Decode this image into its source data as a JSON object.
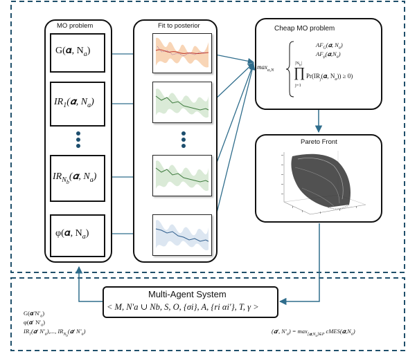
{
  "panels": {
    "mo_problem_title": "MO problem",
    "fit_title": "Fit to posterior",
    "cheap_title": "Cheap MO problem",
    "pareto_title": "Pareto Front",
    "mas_title": "Multi-Agent System"
  },
  "functions": [
    {
      "id": "G",
      "text": "G(𝜶, N",
      "sub": "a",
      "close": ")"
    },
    {
      "id": "IR1",
      "text": "IR",
      "sub": "1",
      "rest": "(𝜶, N",
      "sub2": "a",
      "close": ")"
    },
    {
      "id": "IRNb",
      "text": "IR",
      "sub": "N",
      "subsub": "b",
      "rest": "(𝜶, N",
      "sub2": "a",
      "close": ")"
    },
    {
      "id": "phi",
      "text": "φ(𝜶, N",
      "sub": "a",
      "close": ")"
    }
  ],
  "cheap_problem": {
    "max_label": "max",
    "max_sub": "α,N",
    "af1": "AF",
    "af1_sub": "G",
    "af1_args": "(𝜶, N",
    "af1_args_sub": "a",
    "af2": "AF",
    "af2_sub": "φ",
    "af2_args": "(𝜶,N",
    "af2_args_sub": "a",
    "prod_upper": "|N",
    "prod_upper_sub": "b",
    "prod_upper_close": "|",
    "prod_lower": "j=1",
    "constraint": "Pr(IR",
    "constraint_sub": "j",
    "constraint_rest": "(𝜶, N",
    "constraint_rest_sub": "a",
    "constraint_end": ")) ≥ 0)"
  },
  "mas_tuple": "< M, N′a ∪ Nb, S, O, {σi}, A, {ri αi′}, T, γ >",
  "bottom_left": {
    "line1": "G(𝜶′N′",
    "line1_sub": "a",
    "line2": "φ(𝜶′ N′",
    "line2_sub": "a",
    "line3a": "IR",
    "line3a_sub": "1",
    "line3a_rest": "(𝜶′ N′",
    "line3a_rest_sub": "a",
    "line3_mid": "),..., IR",
    "line3b_sub": "N",
    "line3b_subsub": "b",
    "line3b_rest": "(𝜶′ N′",
    "line3b_rest_sub": "a"
  },
  "bottom_right": {
    "lhs": "(𝜶′, N′",
    "lhs_sub": "a",
    "eq": ") = max",
    "max_sub": "[𝜶,N",
    "max_sub2": "a",
    "max_sub3": "]∈P",
    "rest": " cMES(𝜶,N",
    "rest_sub": "a",
    "end": ")"
  },
  "colors": {
    "arrow": "#2f6d8c",
    "dashed": "#1f4f6a",
    "orange": "#f2b27a",
    "green": "#7bb07b",
    "blue": "#7a9dc2"
  }
}
